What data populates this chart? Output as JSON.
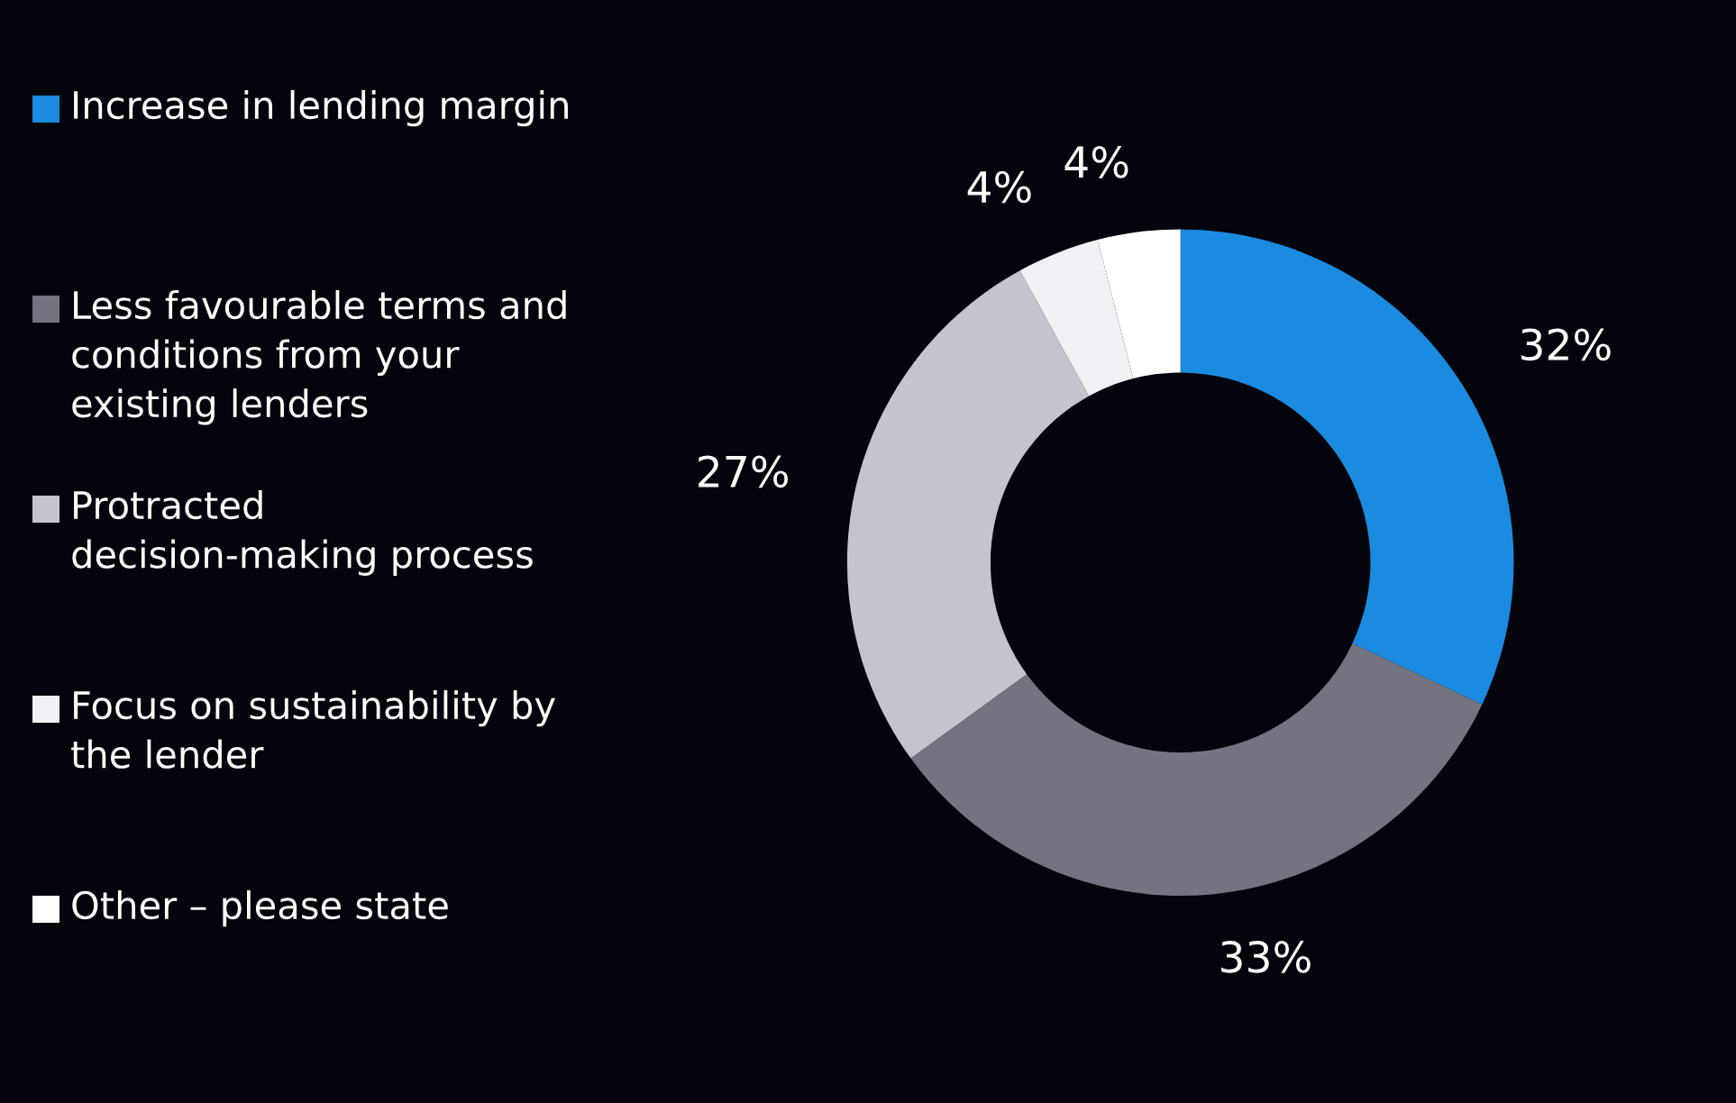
{
  "chart_data": {
    "type": "donut",
    "categories": [
      "Increase in lending margin",
      "Less favourable terms and conditions from your existing lenders",
      "Protracted decision-making process",
      "Focus on sustainability by the lender",
      "Other – please state"
    ],
    "values": [
      32,
      33,
      27,
      4,
      4
    ],
    "colors": [
      "#1a8be0",
      "#747480",
      "#c4c4cd",
      "#f0f0f5",
      "#ffffff"
    ],
    "value_labels": [
      "32%",
      "33%",
      "27%",
      "4%",
      "4%"
    ],
    "legend": "left"
  }
}
